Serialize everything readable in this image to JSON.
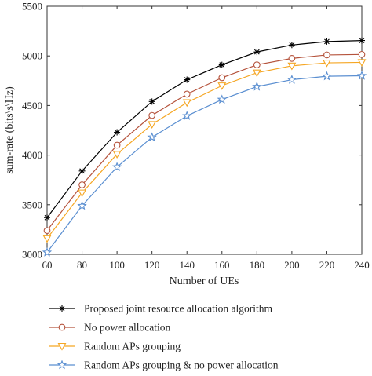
{
  "chart_data": {
    "type": "line",
    "title": "",
    "xlabel": "Number of UEs",
    "ylabel": "sum-rate (bits\\s\\Hz)",
    "x": [
      60,
      80,
      100,
      120,
      140,
      160,
      180,
      200,
      220,
      240
    ],
    "xlim": [
      60,
      240
    ],
    "ylim": [
      3000,
      5500
    ],
    "xticks": [
      "60",
      "80",
      "100",
      "120",
      "140",
      "160",
      "180",
      "200",
      "220",
      "240"
    ],
    "yticks": [
      "3000",
      "3500",
      "4000",
      "4500",
      "5000",
      "5500"
    ],
    "grid": false,
    "legend_position": "bottom",
    "series": [
      {
        "name": "Proposed joint resource allocation algorithm",
        "marker": "asterisk",
        "color": "#000000",
        "values": [
          3370,
          3840,
          4230,
          4540,
          4760,
          4910,
          5040,
          5110,
          5145,
          5155
        ]
      },
      {
        "name": "No power allocation",
        "marker": "circle",
        "color": "#b5533c",
        "values": [
          3240,
          3700,
          4100,
          4400,
          4615,
          4780,
          4910,
          4975,
          5010,
          5015
        ]
      },
      {
        "name": "Random APs grouping",
        "marker": "triangle-down",
        "color": "#f5a623",
        "values": [
          3160,
          3620,
          4010,
          4310,
          4530,
          4700,
          4830,
          4900,
          4930,
          4935
        ]
      },
      {
        "name": "Random APs grouping & no power allocation",
        "marker": "star",
        "color": "#5b8fd1",
        "values": [
          3020,
          3490,
          3880,
          4180,
          4395,
          4560,
          4690,
          4760,
          4795,
          4800
        ]
      }
    ]
  }
}
